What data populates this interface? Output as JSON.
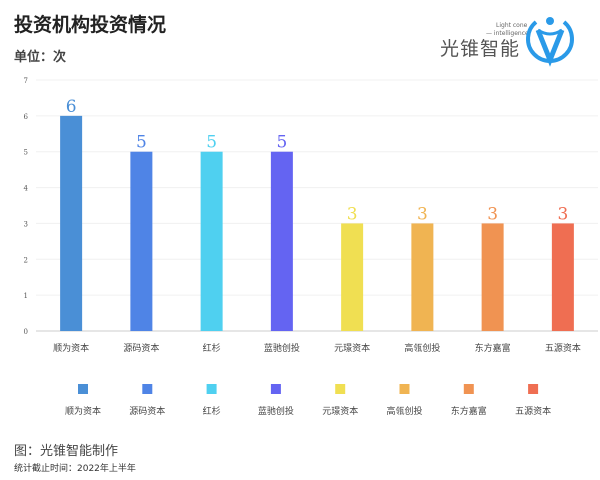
{
  "header": {
    "title": "投资机构投资情况",
    "unit": "单位：次"
  },
  "logo": {
    "name": "光锥智能",
    "tagline1": "Light cone",
    "tagline2": "— intelligence"
  },
  "footer": {
    "source": "图：光锥智能制作",
    "note": "统计截止时间：2022年上半年"
  },
  "chart_data": {
    "type": "bar",
    "title": "投资机构投资情况",
    "ylabel": "单位：次",
    "ylim": [
      0,
      7
    ],
    "yticks": [
      0,
      1,
      2,
      3,
      4,
      5,
      6,
      7
    ],
    "categories": [
      "顺为资本",
      "源码资本",
      "红杉",
      "蓝驰创投",
      "元璟资本",
      "高瓴创投",
      "东方嘉富",
      "五源资本"
    ],
    "values": [
      6,
      5,
      5,
      5,
      3,
      3,
      3,
      3
    ],
    "colors": [
      "#4a8fd6",
      "#4f84e6",
      "#4fd0f0",
      "#6464f2",
      "#f0df52",
      "#f0b452",
      "#f09352",
      "#ef6e52"
    ],
    "legend": "bottom",
    "grid": true
  }
}
